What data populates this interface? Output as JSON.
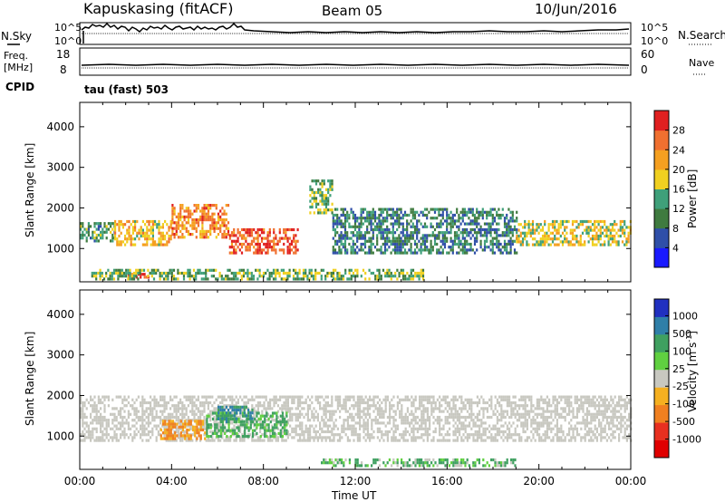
{
  "header": {
    "station": "Kapuskasing (fitACF)",
    "beam": "Beam 05",
    "date": "10/Jun/2016"
  },
  "strips": {
    "nsky_label": "N.Sky",
    "nsearch_label": "N.Search",
    "noise_ticks_left": [
      "10^5",
      "10^0"
    ],
    "noise_ticks_right": [
      "10^5",
      "10^0"
    ],
    "freq_label_1": "Freq.",
    "freq_label_2": "[MHz]",
    "freq_ticks": [
      "18",
      "8"
    ],
    "nave_label": "Nave",
    "nave_ticks": [
      "60",
      "0"
    ],
    "cpid_label": "CPID",
    "cpid_text": "tau (fast) 503"
  },
  "axes": {
    "ylabel": "Slant Range [km]",
    "xlabel": "Time UT",
    "y_ticks": [
      "1000",
      "2000",
      "3000",
      "4000"
    ],
    "x_ticks": [
      "00:00",
      "04:00",
      "08:00",
      "12:00",
      "16:00",
      "20:00",
      "00:00"
    ]
  },
  "colorbars": {
    "power": {
      "label": "Power [dB]",
      "ticks": [
        "4",
        "8",
        "12",
        "16",
        "20",
        "24",
        "28"
      ],
      "colors": [
        "#1a1aff",
        "#2f4fa8",
        "#3f7b3f",
        "#3fa07a",
        "#f0d020",
        "#f5a020",
        "#f07030",
        "#e02020"
      ]
    },
    "velocity": {
      "label": "Velocity [m s",
      "label_sup": "-1",
      "label_end": "]",
      "ticks": [
        "1000",
        "500",
        "100",
        "25",
        "-25",
        "-100",
        "-500",
        "-1000"
      ],
      "colors": [
        "#2030c0",
        "#2f7fa8",
        "#3fa060",
        "#60d040",
        "#c8c8c0",
        "#f5b020",
        "#f08020",
        "#e83020",
        "#e00000"
      ]
    }
  },
  "chart_data": [
    {
      "type": "heatmap",
      "title": "Power",
      "xlabel": "Time UT",
      "ylabel": "Slant Range [km]",
      "xlim": [
        0,
        24
      ],
      "ylim": [
        180,
        4600
      ],
      "colorbar_label": "Power [dB]",
      "colorbar_range": [
        0,
        32
      ],
      "regions": [
        {
          "t": [
            0.0,
            1.5
          ],
          "r": [
            1150,
            1650
          ],
          "level": 12
        },
        {
          "t": [
            1.5,
            4.0
          ],
          "r": [
            1100,
            1700
          ],
          "level": 20
        },
        {
          "t": [
            4.0,
            6.5
          ],
          "r": [
            1300,
            2100
          ],
          "level": 24
        },
        {
          "t": [
            6.5,
            9.5
          ],
          "r": [
            900,
            1500
          ],
          "level": 28
        },
        {
          "t": [
            2.0,
            3.0
          ],
          "r": [
            300,
            400
          ],
          "level": 28
        },
        {
          "t": [
            10.0,
            11.0
          ],
          "r": [
            1900,
            2700
          ],
          "level": 14
        },
        {
          "t": [
            11.0,
            19.0
          ],
          "r": [
            900,
            2000
          ],
          "level": 10
        },
        {
          "t": [
            19.0,
            24.0
          ],
          "r": [
            1100,
            1700
          ],
          "level": 18
        },
        {
          "t": [
            0.5,
            15.0
          ],
          "r": [
            250,
            500
          ],
          "level": 14
        }
      ]
    },
    {
      "type": "heatmap",
      "title": "Velocity",
      "xlabel": "Time UT",
      "ylabel": "Slant Range [km]",
      "xlim": [
        0,
        24
      ],
      "ylim": [
        180,
        4600
      ],
      "colorbar_label": "Velocity [m s-1]",
      "colorbar_range": [
        -1000,
        1000
      ],
      "regions": [
        {
          "t": [
            0.0,
            24.0
          ],
          "r": [
            900,
            2000
          ],
          "level": 0
        },
        {
          "t": [
            3.5,
            5.5
          ],
          "r": [
            900,
            1400
          ],
          "level": -300
        },
        {
          "t": [
            5.5,
            9.0
          ],
          "r": [
            1000,
            1600
          ],
          "level": 80
        },
        {
          "t": [
            6.0,
            7.5
          ],
          "r": [
            1350,
            1750
          ],
          "level": 300
        },
        {
          "t": [
            10.5,
            19.0
          ],
          "r": [
            250,
            450
          ],
          "level": 60
        }
      ]
    }
  ]
}
